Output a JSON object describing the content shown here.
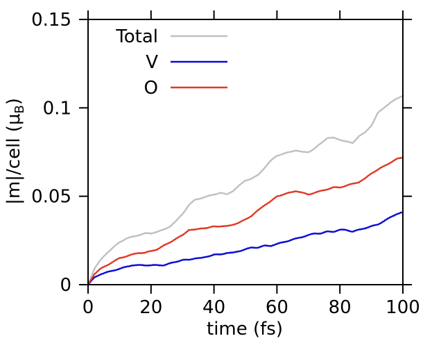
{
  "chart_data": {
    "type": "line",
    "xlabel": "time (fs)",
    "ylabel": {
      "main": "|m|/cell (μ",
      "sub": "B",
      "close": ")"
    },
    "xlim": [
      0,
      100
    ],
    "ylim": [
      0,
      0.15
    ],
    "x_ticks": [
      0,
      20,
      40,
      60,
      80,
      100
    ],
    "x_tick_labels": [
      "0",
      "20",
      "40",
      "60",
      "80",
      "100"
    ],
    "y_ticks": [
      0,
      0.05,
      0.1,
      0.15
    ],
    "y_tick_labels": [
      "0",
      "0.05",
      "0.1",
      "0.15"
    ],
    "grid": false,
    "legend_position": "top-left",
    "x": [
      0,
      2,
      4,
      6,
      8,
      10,
      12,
      14,
      16,
      18,
      20,
      22,
      24,
      26,
      28,
      30,
      32,
      34,
      36,
      38,
      40,
      42,
      44,
      46,
      48,
      50,
      52,
      54,
      56,
      58,
      60,
      62,
      64,
      66,
      68,
      70,
      72,
      74,
      76,
      78,
      80,
      82,
      84,
      86,
      88,
      90,
      92,
      94,
      96,
      98,
      100
    ],
    "series": [
      {
        "name": "Total",
        "color": "#c0c0c0",
        "values": [
          0.0,
          0.009,
          0.014,
          0.018,
          0.021,
          0.024,
          0.026,
          0.027,
          0.028,
          0.029,
          0.029,
          0.03,
          0.031,
          0.033,
          0.036,
          0.04,
          0.045,
          0.048,
          0.049,
          0.05,
          0.051,
          0.052,
          0.051,
          0.053,
          0.056,
          0.059,
          0.06,
          0.062,
          0.066,
          0.07,
          0.073,
          0.074,
          0.075,
          0.076,
          0.075,
          0.075,
          0.077,
          0.08,
          0.083,
          0.083,
          0.082,
          0.081,
          0.08,
          0.084,
          0.086,
          0.09,
          0.097,
          0.1,
          0.103,
          0.105,
          0.107
        ]
      },
      {
        "name": "V",
        "color": "#0a0ad6",
        "values": [
          0.0,
          0.004,
          0.006,
          0.007,
          0.008,
          0.009,
          0.01,
          0.011,
          0.011,
          0.011,
          0.011,
          0.011,
          0.011,
          0.012,
          0.013,
          0.014,
          0.014,
          0.015,
          0.015,
          0.016,
          0.017,
          0.017,
          0.018,
          0.018,
          0.019,
          0.02,
          0.021,
          0.021,
          0.022,
          0.022,
          0.023,
          0.024,
          0.025,
          0.026,
          0.027,
          0.028,
          0.029,
          0.029,
          0.03,
          0.03,
          0.031,
          0.031,
          0.03,
          0.031,
          0.032,
          0.033,
          0.034,
          0.036,
          0.038,
          0.04,
          0.041
        ]
      },
      {
        "name": "O",
        "color": "#e03a24",
        "values": [
          0.0,
          0.006,
          0.009,
          0.011,
          0.013,
          0.015,
          0.016,
          0.017,
          0.018,
          0.018,
          0.019,
          0.02,
          0.022,
          0.024,
          0.026,
          0.028,
          0.031,
          0.031,
          0.032,
          0.032,
          0.033,
          0.033,
          0.033,
          0.034,
          0.035,
          0.037,
          0.039,
          0.042,
          0.045,
          0.047,
          0.05,
          0.051,
          0.052,
          0.053,
          0.052,
          0.051,
          0.052,
          0.053,
          0.054,
          0.055,
          0.055,
          0.056,
          0.057,
          0.058,
          0.06,
          0.063,
          0.065,
          0.067,
          0.069,
          0.071,
          0.072
        ]
      }
    ]
  }
}
